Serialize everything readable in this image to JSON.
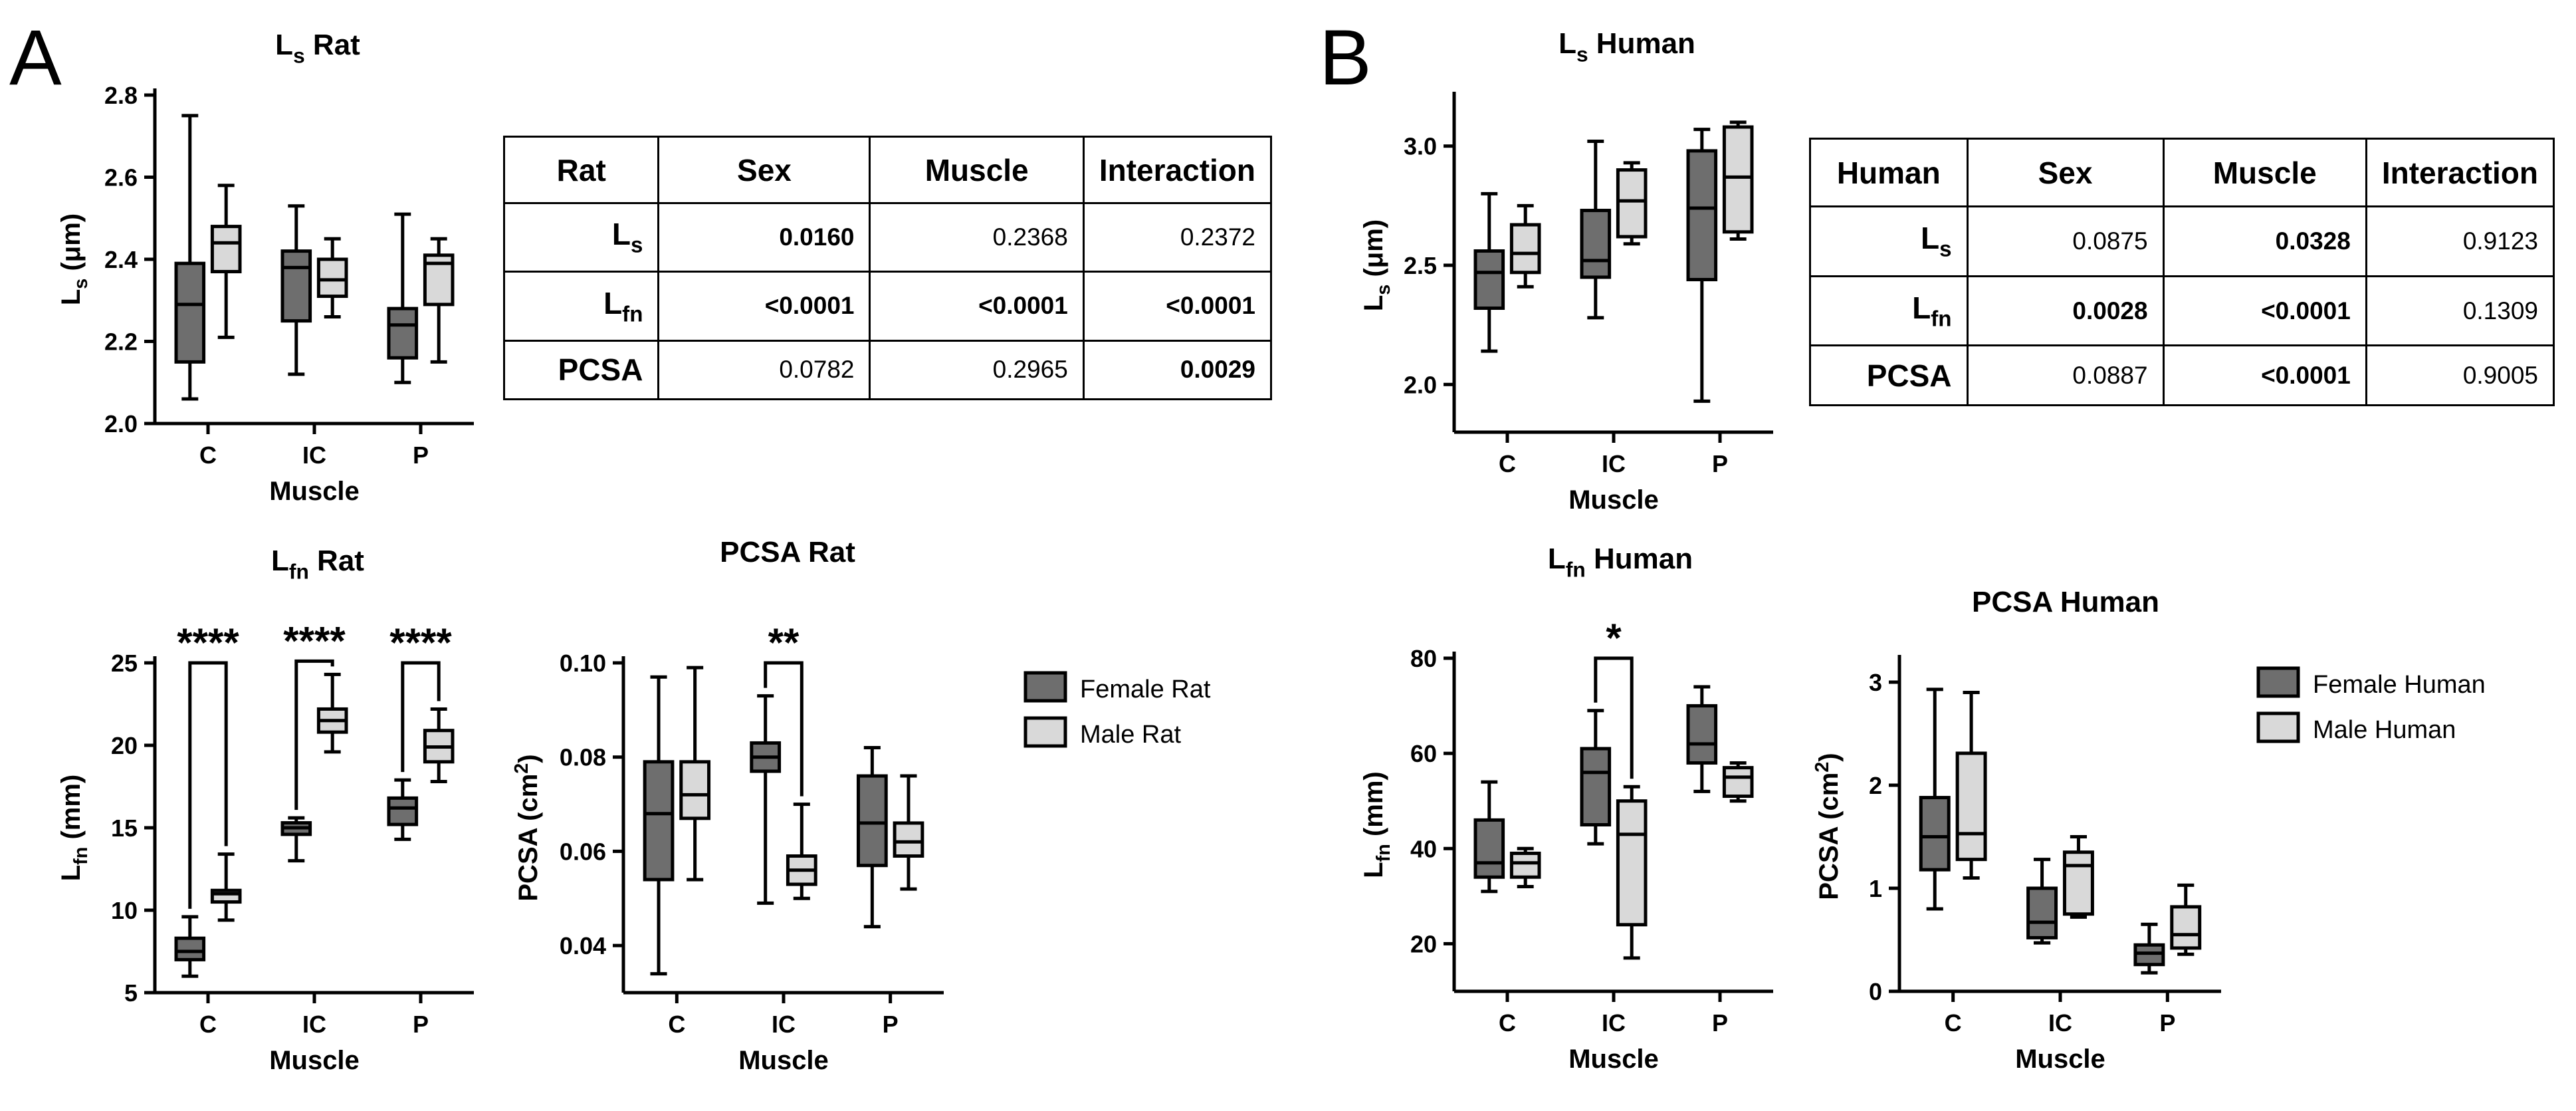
{
  "panel_letters": [
    "A",
    "B"
  ],
  "colors": {
    "female": "#6e6e6e",
    "male": "#d9d9d9",
    "stroke": "#000000"
  },
  "legend_rat": {
    "female": "Female Rat",
    "male": "Male Rat"
  },
  "legend_human": {
    "female": "Female Human",
    "male": "Male Human"
  },
  "table_rat": {
    "header": [
      "Rat",
      "Sex",
      "Muscle",
      "Interaction"
    ],
    "rows": [
      {
        "label": "L",
        "sub": "s",
        "values": [
          "0.0160",
          "0.2368",
          "0.2372"
        ],
        "bold": [
          true,
          false,
          false
        ]
      },
      {
        "label": "L",
        "sub": "fn",
        "values": [
          "<0.0001",
          "<0.0001",
          "<0.0001"
        ],
        "bold": [
          true,
          true,
          true
        ]
      },
      {
        "label": "PCSA",
        "sub": "",
        "values": [
          "0.0782",
          "0.2965",
          "0.0029"
        ],
        "bold": [
          false,
          false,
          true
        ]
      }
    ]
  },
  "table_human": {
    "header": [
      "Human",
      "Sex",
      "Muscle",
      "Interaction"
    ],
    "rows": [
      {
        "label": "L",
        "sub": "s",
        "values": [
          "0.0875",
          "0.0328",
          "0.9123"
        ],
        "bold": [
          false,
          true,
          false
        ]
      },
      {
        "label": "L",
        "sub": "fn",
        "values": [
          "0.0028",
          "<0.0001",
          "0.1309"
        ],
        "bold": [
          true,
          true,
          false
        ]
      },
      {
        "label": "PCSA",
        "sub": "",
        "values": [
          "0.0887",
          "<0.0001",
          "0.9005"
        ],
        "bold": [
          false,
          true,
          false
        ]
      }
    ]
  },
  "chart_data": [
    {
      "id": "ls-rat",
      "type": "boxplot",
      "title": "L",
      "title_sub": "s",
      "title_rest": " Rat",
      "xlabel": "Muscle",
      "ylabel": "L",
      "ylabel_sub": "s",
      "ylabel_rest": " (μm)",
      "categories": [
        "C",
        "IC",
        "P"
      ],
      "ylim": [
        2.0,
        2.8
      ],
      "yticks": [
        "2.0",
        "2.2",
        "2.4",
        "2.6",
        "2.8"
      ],
      "series": [
        {
          "name": "Female Rat",
          "boxes": [
            [
              2.06,
              2.15,
              2.29,
              2.39,
              2.75
            ],
            [
              2.12,
              2.25,
              2.38,
              2.42,
              2.53
            ],
            [
              2.1,
              2.16,
              2.24,
              2.28,
              2.51
            ]
          ]
        },
        {
          "name": "Male Rat",
          "boxes": [
            [
              2.21,
              2.37,
              2.44,
              2.48,
              2.58
            ],
            [
              2.26,
              2.31,
              2.35,
              2.4,
              2.45
            ],
            [
              2.15,
              2.29,
              2.39,
              2.41,
              2.45
            ]
          ]
        }
      ],
      "significance": []
    },
    {
      "id": "lfn-rat",
      "type": "boxplot",
      "title": "L",
      "title_sub": "fn",
      "title_rest": " Rat",
      "xlabel": "Muscle",
      "ylabel": "L",
      "ylabel_sub": "fn",
      "ylabel_rest": " (mm)",
      "categories": [
        "C",
        "IC",
        "P"
      ],
      "ylim": [
        5,
        25
      ],
      "yticks": [
        "5",
        "10",
        "15",
        "20",
        "25"
      ],
      "series": [
        {
          "name": "Female Rat",
          "boxes": [
            [
              6.0,
              7.0,
              7.5,
              8.3,
              9.6
            ],
            [
              13.0,
              14.6,
              15.0,
              15.3,
              15.6
            ],
            [
              14.3,
              15.2,
              16.2,
              16.8,
              17.9
            ]
          ]
        },
        {
          "name": "Male Rat",
          "boxes": [
            [
              9.4,
              10.5,
              11.0,
              11.2,
              13.4
            ],
            [
              19.6,
              20.8,
              21.5,
              22.2,
              24.3
            ],
            [
              17.8,
              19.0,
              19.9,
              20.9,
              22.2
            ]
          ]
        }
      ],
      "significance": [
        {
          "category": "C",
          "label": "****"
        },
        {
          "category": "IC",
          "label": "****"
        },
        {
          "category": "P",
          "label": "****"
        }
      ]
    },
    {
      "id": "pcsa-rat",
      "type": "boxplot",
      "title": "PCSA Rat",
      "title_sub": "",
      "title_rest": "",
      "xlabel": "Muscle",
      "ylabel": "PCSA (cm",
      "ylabel_sup": "2",
      "ylabel_rest": ")",
      "categories": [
        "C",
        "IC",
        "P"
      ],
      "ylim": [
        0.03,
        0.1
      ],
      "yticks": [
        "0.04",
        "0.06",
        "0.08",
        "0.10"
      ],
      "series": [
        {
          "name": "Female Rat",
          "boxes": [
            [
              0.034,
              0.054,
              0.068,
              0.079,
              0.097
            ],
            [
              0.049,
              0.077,
              0.08,
              0.083,
              0.093
            ],
            [
              0.044,
              0.057,
              0.066,
              0.076,
              0.082
            ]
          ]
        },
        {
          "name": "Male Rat",
          "boxes": [
            [
              0.054,
              0.067,
              0.072,
              0.079,
              0.099
            ],
            [
              0.05,
              0.053,
              0.056,
              0.059,
              0.07
            ],
            [
              0.052,
              0.059,
              0.062,
              0.066,
              0.076
            ]
          ]
        }
      ],
      "significance": [
        {
          "category": "IC",
          "label": "**"
        }
      ]
    },
    {
      "id": "ls-human",
      "type": "boxplot",
      "title": "L",
      "title_sub": "s",
      "title_rest": " Human",
      "xlabel": "Muscle",
      "ylabel": "L",
      "ylabel_sub": "s",
      "ylabel_rest": " (μm)",
      "categories": [
        "C",
        "IC",
        "P"
      ],
      "ylim": [
        1.8,
        3.2
      ],
      "yticks": [
        "2.0",
        "2.5",
        "3.0"
      ],
      "series": [
        {
          "name": "Female Human",
          "boxes": [
            [
              2.14,
              2.32,
              2.47,
              2.56,
              2.8
            ],
            [
              2.28,
              2.45,
              2.52,
              2.73,
              3.02
            ],
            [
              1.93,
              2.44,
              2.74,
              2.98,
              3.07
            ]
          ]
        },
        {
          "name": "Male Human",
          "boxes": [
            [
              2.41,
              2.47,
              2.55,
              2.67,
              2.75
            ],
            [
              2.59,
              2.62,
              2.77,
              2.9,
              2.93
            ],
            [
              2.61,
              2.64,
              2.87,
              3.08,
              3.1
            ]
          ]
        }
      ],
      "significance": []
    },
    {
      "id": "lfn-human",
      "type": "boxplot",
      "title": "L",
      "title_sub": "fn",
      "title_rest": " Human",
      "xlabel": "Muscle",
      "ylabel": "L",
      "ylabel_sub": "fn",
      "ylabel_rest": " (mm)",
      "categories": [
        "C",
        "IC",
        "P"
      ],
      "ylim": [
        10,
        80
      ],
      "yticks": [
        "20",
        "40",
        "60",
        "80"
      ],
      "series": [
        {
          "name": "Female Human",
          "boxes": [
            [
              31.0,
              34.0,
              37.0,
              46.0,
              54.0
            ],
            [
              41.0,
              45.0,
              56.0,
              61.0,
              69.0
            ],
            [
              52.0,
              58.0,
              62.0,
              70.0,
              74.0
            ]
          ]
        },
        {
          "name": "Male Human",
          "boxes": [
            [
              32.0,
              34.0,
              37.0,
              39.0,
              40.0
            ],
            [
              17.0,
              24.0,
              43.0,
              50.0,
              53.0
            ],
            [
              50.0,
              51.0,
              55.0,
              57.0,
              58.0
            ]
          ]
        }
      ],
      "significance": [
        {
          "category": "IC",
          "label": "*"
        }
      ]
    },
    {
      "id": "pcsa-human",
      "type": "boxplot",
      "title": "PCSA Human",
      "title_sub": "",
      "title_rest": "",
      "xlabel": "Muscle",
      "ylabel": "PCSA (cm",
      "ylabel_sup": "2",
      "ylabel_rest": ")",
      "categories": [
        "C",
        "IC",
        "P"
      ],
      "ylim": [
        0,
        3.2
      ],
      "yticks": [
        "0",
        "1",
        "2",
        "3"
      ],
      "series": [
        {
          "name": "Female Human",
          "boxes": [
            [
              0.8,
              1.18,
              1.5,
              1.88,
              2.93
            ],
            [
              0.47,
              0.52,
              0.67,
              1.0,
              1.28
            ],
            [
              0.18,
              0.26,
              0.37,
              0.45,
              0.65
            ]
          ]
        },
        {
          "name": "Male Human",
          "boxes": [
            [
              1.1,
              1.28,
              1.53,
              2.31,
              2.9
            ],
            [
              0.72,
              0.75,
              1.22,
              1.35,
              1.5
            ],
            [
              0.36,
              0.42,
              0.55,
              0.82,
              1.03
            ]
          ]
        }
      ],
      "significance": []
    }
  ]
}
